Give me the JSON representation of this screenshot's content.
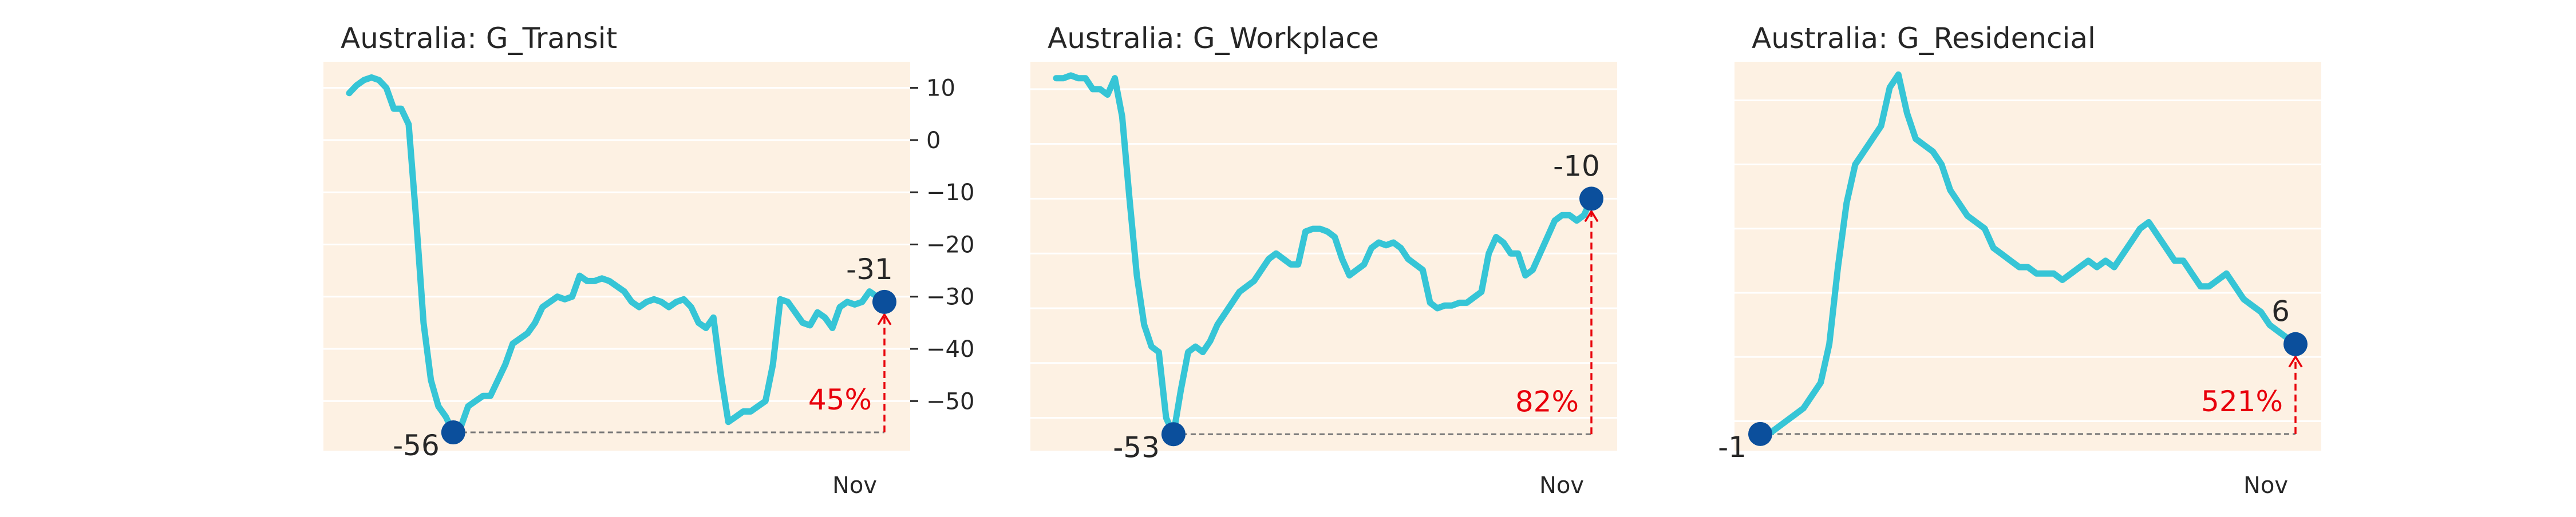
{
  "colors": {
    "background": "#fdf1e3",
    "grid": "#ffffff",
    "line": "#36c5d6",
    "point": "#0b4f9c",
    "annotation": "#e8000b",
    "dashed": "#777777",
    "text": "#262626"
  },
  "chart_data": [
    {
      "type": "line",
      "title": "Australia: G_Transit",
      "xlabel": "",
      "ylabel": "",
      "x_tick_labels": [
        "Nov"
      ],
      "y_axis_side": "right",
      "y_ticks": [
        10,
        0,
        -10,
        -20,
        -30,
        -40,
        -50
      ],
      "y_tick_labels": [
        "10",
        "0",
        "−10",
        "−20",
        "−30",
        "−40",
        "−50"
      ],
      "ylim": [
        -59.5,
        15
      ],
      "grid": true,
      "series": [
        {
          "values": [
            9,
            10.5,
            11.5,
            12,
            11.5,
            10,
            6,
            6,
            3,
            -15,
            -35,
            -46,
            -51,
            -53,
            -56,
            -55,
            -51,
            -50,
            -49,
            -49,
            -46,
            -43,
            -39,
            -38,
            -37,
            -35,
            -32,
            -31,
            -30,
            -30.5,
            -30,
            -26,
            -27,
            -27,
            -26.5,
            -27,
            -28,
            -29,
            -31,
            -32,
            -31,
            -30.5,
            -31,
            -32,
            -31,
            -30.5,
            -32,
            -35,
            -36,
            -34,
            -45,
            -54,
            -53,
            -52,
            -52,
            -51,
            -50,
            -43,
            -30.5,
            -31,
            -33,
            -35,
            -35.5,
            -33,
            -34,
            -36,
            -32,
            -31,
            -31.5,
            -31,
            -29,
            -30,
            -31
          ]
        }
      ],
      "min_point": {
        "value": -56,
        "label": "-56"
      },
      "last_point": {
        "value": -31,
        "label": "-31"
      },
      "recovery_label": "45%"
    },
    {
      "type": "line",
      "title": "Australia: G_Workplace",
      "xlabel": "",
      "ylabel": "",
      "x_tick_labels": [
        "Nov"
      ],
      "y_axis_side": "none",
      "ylim": [
        -56,
        15
      ],
      "grid": true,
      "series": [
        {
          "values": [
            12,
            12,
            12.5,
            12,
            12,
            10,
            10,
            9,
            12,
            5,
            -10,
            -24,
            -33,
            -37,
            -38,
            -50,
            -53,
            -45,
            -38,
            -37,
            -38,
            -36,
            -33,
            -31,
            -29,
            -27,
            -26,
            -25,
            -23,
            -21,
            -20,
            -21,
            -22,
            -22,
            -16,
            -15.5,
            -15.5,
            -16,
            -17,
            -21,
            -24,
            -23,
            -22,
            -19,
            -18,
            -18.5,
            -18,
            -19,
            -21,
            -22,
            -23,
            -29,
            -30,
            -29.5,
            -29.5,
            -29,
            -29,
            -28,
            -27,
            -20,
            -17,
            -18,
            -20,
            -20,
            -24,
            -23,
            -20,
            -17,
            -14,
            -13,
            -13,
            -14,
            -13,
            -10
          ]
        }
      ],
      "min_point": {
        "value": -53,
        "label": "-53"
      },
      "last_point": {
        "value": -10,
        "label": "-10"
      },
      "recovery_label": "82%"
    },
    {
      "type": "line",
      "title": "Australia: G_Residencial",
      "xlabel": "",
      "ylabel": "",
      "x_tick_labels": [
        "Nov"
      ],
      "y_axis_side": "none",
      "ylim": [
        -2.3,
        28
      ],
      "grid": true,
      "series": [
        {
          "values": [
            -1,
            -1,
            -0.5,
            0,
            0.5,
            1,
            2,
            3,
            6,
            12,
            17,
            20,
            21,
            22,
            23,
            26,
            27,
            24,
            22,
            21.5,
            21,
            20,
            18,
            17,
            16,
            15.5,
            15,
            13.5,
            13,
            12.5,
            12,
            12,
            11.5,
            11.5,
            11.5,
            11,
            11.5,
            12,
            12.5,
            12,
            12.5,
            12,
            13,
            14,
            15,
            15.5,
            14.5,
            13.5,
            12.5,
            12.5,
            11.5,
            10.5,
            10.5,
            11,
            11.5,
            10.5,
            9.5,
            9,
            8.5,
            7.5,
            7,
            6.5,
            6
          ]
        }
      ],
      "min_point": {
        "value": -1,
        "label": "-1"
      },
      "last_point": {
        "value": 6,
        "label": "6"
      },
      "recovery_label": "521%"
    }
  ]
}
